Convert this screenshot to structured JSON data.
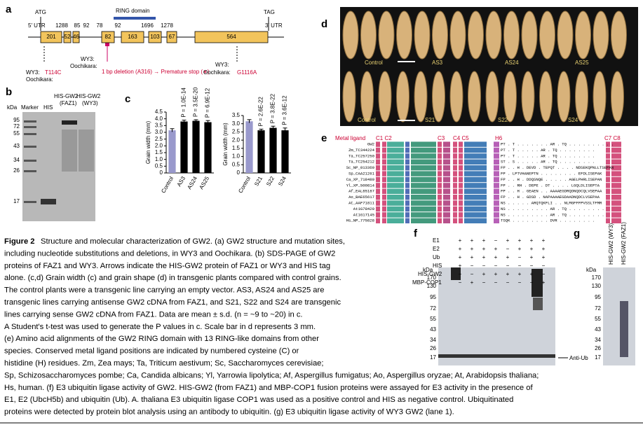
{
  "panel_labels": {
    "a": "a",
    "b": "b",
    "c": "c",
    "d": "d",
    "e": "e",
    "f": "f",
    "g": "g"
  },
  "panel_a": {
    "utr5": "5′ UTR",
    "utr3": "3′ UTR",
    "atg": "ATG",
    "tag": "TAG",
    "ring": "RING domain",
    "exons": [
      "201",
      "52",
      "46",
      "82",
      "163",
      "103",
      "67",
      "564"
    ],
    "introns": [
      "1288",
      "85",
      "92",
      "78",
      "92",
      "1696",
      "1278"
    ],
    "mut1": {
      "wy3": "WY3:",
      "ooch": "Oochikara:",
      "change": "T114C"
    },
    "mut2": {
      "wy3": "WY3:",
      "ooch": "Oochikara:",
      "change": "1 bp deletion (A316) → Premature stop (∗)"
    },
    "mut3": {
      "wy3": "WY3:",
      "ooch": "Oochikara:",
      "change": "G1116A"
    }
  },
  "panel_b": {
    "kda": "kDa",
    "lanes": [
      "Marker",
      "HIS",
      "HIS-GW2 (FAZ1)",
      "HIS-GW2 (WY3)"
    ],
    "ladder": [
      "95",
      "72",
      "55",
      "43",
      "34",
      "26",
      "17"
    ]
  },
  "panel_c": [
    {
      "type": "bar",
      "ylabel": "Grain width (mm)",
      "categories": [
        "Control",
        "AS3",
        "AS24",
        "AS25"
      ],
      "values": [
        3.15,
        3.8,
        3.85,
        3.75
      ],
      "errors": [
        0.12,
        0.1,
        0.08,
        0.12
      ],
      "colors": [
        "#9999cc",
        "#000000",
        "#000000",
        "#000000"
      ],
      "pvalues": [
        null,
        "P = 1.0E-14",
        "P = 3.5E-20",
        "P = 6.9E-12"
      ],
      "ylim": [
        0,
        4.5
      ],
      "yticks": [
        0,
        0.5,
        {
          "value": 1,
          "label": "1.0"
        },
        1.5,
        {
          "value": 2,
          "label": "2.0"
        },
        2.5,
        {
          "value": 3,
          "label": "3.0"
        },
        3.5,
        {
          "value": 4,
          "label": "4.0"
        },
        4.5
      ]
    },
    {
      "type": "bar",
      "ylabel": "Grain width (mm)",
      "categories": [
        "Control",
        "S21",
        "S22",
        "S24"
      ],
      "values": [
        3.15,
        2.6,
        2.75,
        2.6
      ],
      "errors": [
        0.1,
        0.07,
        0.1,
        0.14
      ],
      "colors": [
        "#9999cc",
        "#000000",
        "#000000",
        "#000000"
      ],
      "pvalues": [
        null,
        "P = 2.6E-22",
        "P = 3.8E-22",
        "P = 3.6E-12"
      ],
      "ylim": [
        0,
        3.5
      ],
      "yticks": [
        0,
        0.5,
        {
          "value": 1,
          "label": "1.0"
        },
        1.5,
        {
          "value": 2,
          "label": "2.0"
        },
        2.5,
        {
          "value": 3,
          "label": "3.0"
        },
        3.5
      ]
    }
  ],
  "panel_d": {
    "top": [
      "Control",
      "AS3",
      "AS24",
      "AS25"
    ],
    "bottom": [
      "Control",
      "S21",
      "S22",
      "S24"
    ]
  },
  "panel_e": {
    "metal_ligand": "Metal ligand",
    "c1c2": "C1 C2",
    "c3": "C3",
    "c4c5": "C4 C5",
    "h6": "H6",
    "c7c8": "C7 C8",
    "rows": [
      {
        "name": "GW2",
        "seq": "PT . T . . . . . . . AR . TQ . . . . . . . . . ."
      },
      {
        "name": "Zm_TC344224",
        "seq": "PT . T . . . . . AR . TQ . . . . . . . ."
      },
      {
        "name": "Ta_TC257250",
        "seq": "PT . T . . . . . AR . TQ . . . . . . . ."
      },
      {
        "name": "Ta_TC254212",
        "seq": "ST . S . . . . . AR . TQ . . . . . . . ."
      },
      {
        "name": "Sc_NP_013360",
        "seq": "FP . . H . DEVD . TEPQT . . . . NDSEKQPNLLTSEPAN"
      },
      {
        "name": "Sp_CAA21261",
        "seq": "FP . LPTVHANEPTN . . . . . . . . EFDLISEPAK"
      },
      {
        "name": "Ca_XP_718480",
        "seq": "FP . . H . DDQSNQE . . . . . AGELPHRLISEPAN"
      },
      {
        "name": "Yl_XP_500814",
        "seq": "FP . . RH . DEPE . DT . . . . LGQLDLISEPTA"
      },
      {
        "name": "Af_EAL85187",
        "seq": "FP . . H . GEAEN . . AAAAEGDRQDNQDCQLVSEPAA"
      },
      {
        "name": "Ao_BAE65617",
        "seq": "FP . . H . GDSD . NAPAAAAEGDAADNQDCLVSEPAA"
      },
      {
        "name": "At_AAF71811",
        "seq": "NS . . . . . ARQTQKFLI . . NLMGFFFPVSSLTFMR"
      },
      {
        "name": "At1G78420",
        "seq": "NS . . . . . . . . . AR . TQ . . . . . . . ."
      },
      {
        "name": "At1G17145",
        "seq": "NS . . . . . . . . . AR . TQ . . . . . . . ."
      },
      {
        "name": "Hs_NP_775828",
        "seq": "TSQK . . . . . . . . DVR . . . . . . . ."
      }
    ]
  },
  "panel_f": {
    "rows": [
      {
        "label": "E1",
        "signs": [
          "+",
          "+",
          "+",
          "−",
          "+",
          "+",
          "+",
          "+"
        ]
      },
      {
        "label": "E2",
        "signs": [
          "+",
          "+",
          "+",
          "+",
          "−",
          "+",
          "+",
          "+"
        ]
      },
      {
        "label": "Ub",
        "signs": [
          "+",
          "+",
          "+",
          "+",
          "+",
          "−",
          "+",
          "+"
        ]
      },
      {
        "label": "HIS",
        "signs": [
          "+",
          "−",
          "−",
          "−",
          "−",
          "−",
          "−",
          "−"
        ]
      },
      {
        "label": "HIS-GW2",
        "signs": [
          "−",
          "−",
          "+",
          "+",
          "+",
          "+",
          "+",
          "−"
        ]
      },
      {
        "label": "MBP-COP1",
        "signs": [
          "−",
          "+",
          "−",
          "−",
          "−",
          "−",
          "−",
          "+"
        ]
      }
    ],
    "kda": "kDa",
    "ladder": [
      "170",
      "130",
      "95",
      "72",
      "55",
      "43",
      "34",
      "26",
      "17"
    ],
    "anti_ub": "Anti-Ub"
  },
  "panel_g": {
    "lanes": [
      "HIS-GW2 (WY3)",
      "HIS-GW2 (FAZ1)"
    ],
    "kda": "kDa",
    "ladder": [
      "170",
      "130",
      "95",
      "72",
      "55",
      "43",
      "34",
      "26",
      "17"
    ]
  },
  "caption": {
    "title": "Figure 2",
    "lines": [
      "Structure and molecular characterization of GW2. (a) GW2 structure and mutation sites,",
      "including nucleotide substitutions and deletions, in WY3 and Oochikara. (b) SDS-PAGE of GW2",
      "proteins of FAZ1 and WY3. Arrows indicate the HIS-GW2 protein of FAZ1 or WY3 and HIS tag",
      "alone. (c,d) Grain width (c) and grain shape (d) in transgenic plants compared with control grains.",
      "The control plants were a transgenic line carrying an empty vector. AS3, AS24 and AS25 are",
      "transgenic lines carrying antisense GW2 cDNA from FAZ1, and S21, S22 and S24 are transgenic",
      "lines carrying sense GW2 cDNA from FAZ1. Data are mean ± s.d. (n = ~9 to ~20) in c.",
      "A Student's t-test was used to generate the P values in c. Scale bar in d represents 3 mm.",
      "(e) Amino acid alignments of the GW2 RING domain with 13 RING-like domains from other",
      "species. Conserved metal ligand positions are indicated by numbered cysteine (C) or",
      "histidine (H) residues. Zm, Zea mays; Ta, Triticum aestivum; Sc, Saccharomyces cerevisiae;",
      "Sp, Schizosaccharomyces pombe; Ca, Candida albicans; Yl, Yarrowia lipolytica; Af, Aspergillus fumigatus; Ao, Aspergillus oryzae; At, Arabidopsis thaliana;",
      "Hs, human. (f) E3 ubiquitin ligase activity of GW2. HIS-GW2 (from FAZ1) and MBP-COP1 fusion proteins were assayed for E3 activity in the presence of",
      "E1, E2 (UbcH5b) and ubiquitin (Ub). A. thaliana E3 ubiquitin ligase COP1 was used as a positive control and HIS as negative control. Ubiquitinated",
      "proteins were detected by protein blot analysis using an antibody to ubiquitin. (g) E3 ubiquitin ligase activity of WY3 GW2 (lane 1)."
    ]
  }
}
